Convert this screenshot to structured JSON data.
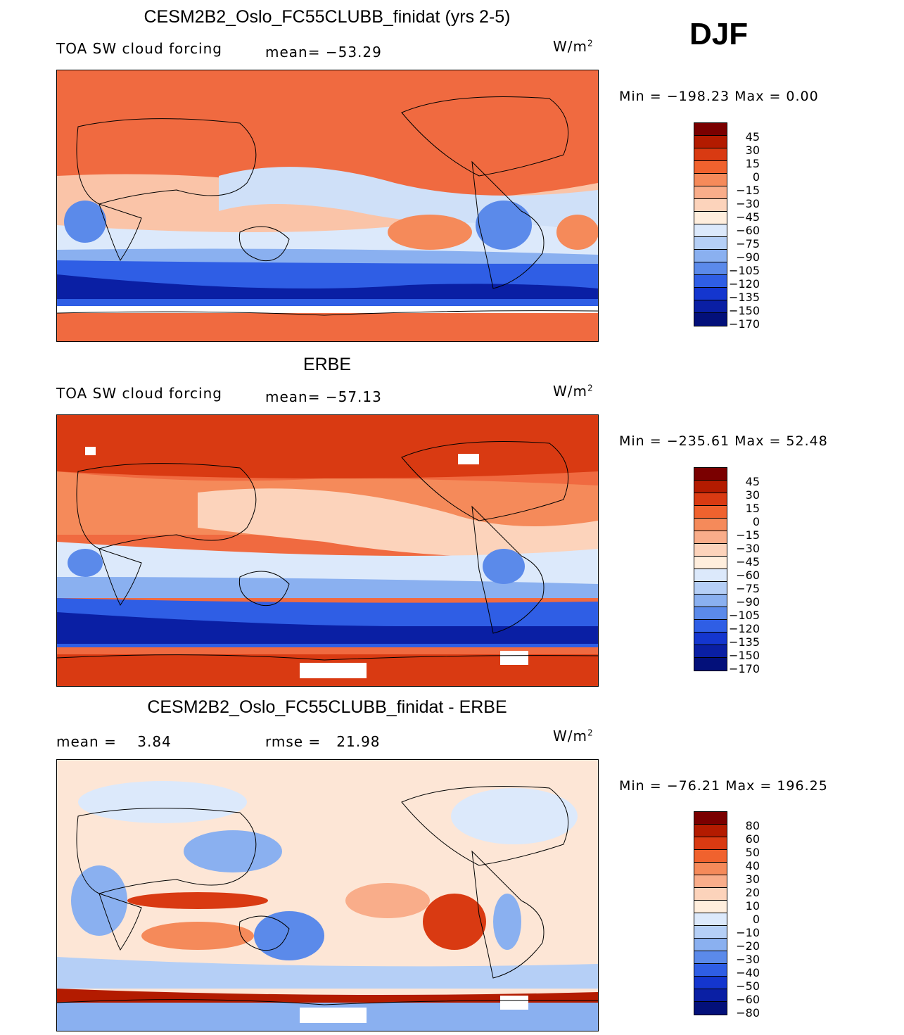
{
  "header": {
    "season": "DJF"
  },
  "panels": [
    {
      "title": "CESM2B2_Oslo_FC55CLUBB_finidat (yrs 2-5)",
      "left_label": "TOA SW cloud forcing",
      "center_label": "mean= −53.29",
      "units_base": "W/m",
      "units_exp": "2",
      "minmax": "Min = −198.23 Max =    0.00",
      "colorbar_labels": [
        "45",
        "30",
        "15",
        "0",
        "−15",
        "−30",
        "−45",
        "−60",
        "−75",
        "−90",
        "−105",
        "−120",
        "−135",
        "−150",
        "−170"
      ]
    },
    {
      "title": "ERBE",
      "left_label": "TOA SW cloud forcing",
      "center_label": "mean= −57.13",
      "units_base": "W/m",
      "units_exp": "2",
      "minmax": "Min = −235.61 Max =  52.48",
      "colorbar_labels": [
        "45",
        "30",
        "15",
        "0",
        "−15",
        "−30",
        "−45",
        "−60",
        "−75",
        "−90",
        "−105",
        "−120",
        "−135",
        "−150",
        "−170"
      ]
    },
    {
      "title": "CESM2B2_Oslo_FC55CLUBB_finidat - ERBE",
      "left_label": "mean =    3.84",
      "center_label": "rmse =   21.98",
      "units_base": "W/m",
      "units_exp": "2",
      "minmax": "Min = −76.21 Max = 196.25",
      "colorbar_labels": [
        "80",
        "60",
        "50",
        "40",
        "30",
        "20",
        "10",
        "0",
        "−10",
        "−20",
        "−30",
        "−40",
        "−50",
        "−60",
        "−80"
      ]
    }
  ],
  "colorbar_colors": [
    "#7a0000",
    "#b31b00",
    "#d93a12",
    "#f0622e",
    "#f58a5a",
    "#f9ad8a",
    "#fcd3bb",
    "#ffeedd",
    "#dce9fb",
    "#b5cff6",
    "#8ab0f0",
    "#5b8aea",
    "#2f5ee5",
    "#1436cf",
    "#0a1fa4",
    "#03107a"
  ],
  "map_colors": {
    "high": "#c53010",
    "mid_high": "#f06a40",
    "mid": "#f7a07c",
    "neutral": "#fde6d6",
    "light_blue": "#cfe0f8",
    "blue": "#7fa4ee",
    "deep_blue": "#1f44d8",
    "darkest_blue": "#0a1c9e"
  }
}
